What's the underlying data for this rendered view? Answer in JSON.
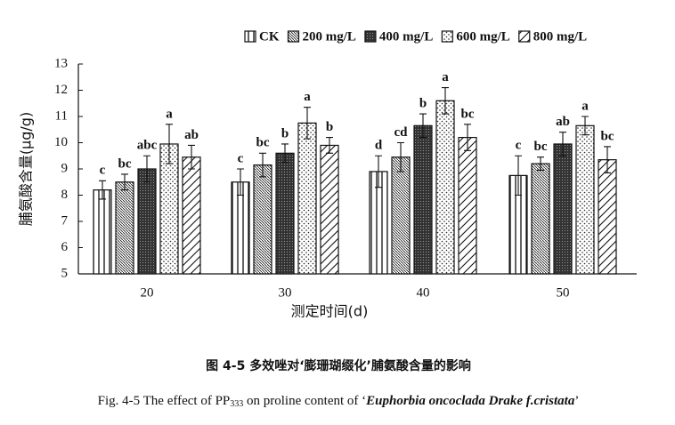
{
  "chart_data": {
    "type": "bar",
    "x_label": "测定时间(d)",
    "y_label": "脯氨酸含量(μg/g)",
    "categories": [
      "20",
      "30",
      "40",
      "50"
    ],
    "ylim": [
      5,
      13
    ],
    "yticks": [
      5,
      6,
      7,
      8,
      9,
      10,
      11,
      12,
      13
    ],
    "series": [
      {
        "name": "CK",
        "color": "#111111",
        "pattern": "vertical",
        "values": [
          8.2,
          8.5,
          8.9,
          8.75
        ],
        "errors": [
          0.35,
          0.5,
          0.6,
          0.75
        ],
        "labels": [
          "c",
          "c",
          "d",
          "c"
        ]
      },
      {
        "name": "200 mg/L",
        "color": "#111111",
        "pattern": "dense-diagonal",
        "values": [
          8.5,
          9.15,
          9.45,
          9.2
        ],
        "errors": [
          0.3,
          0.45,
          0.55,
          0.25
        ],
        "labels": [
          "bc",
          "bc",
          "cd",
          "bc"
        ]
      },
      {
        "name": "400 mg/L",
        "color": "#111111",
        "pattern": "dark",
        "values": [
          9.0,
          9.6,
          10.65,
          9.95
        ],
        "errors": [
          0.5,
          0.35,
          0.45,
          0.45
        ],
        "labels": [
          "abc",
          "b",
          "b",
          "ab"
        ]
      },
      {
        "name": "600 mg/L",
        "color": "#111111",
        "pattern": "dots",
        "values": [
          9.95,
          10.75,
          11.6,
          10.65
        ],
        "errors": [
          0.75,
          0.6,
          0.5,
          0.35
        ],
        "labels": [
          "a",
          "a",
          "a",
          "a"
        ]
      },
      {
        "name": "800 mg/L",
        "color": "#111111",
        "pattern": "diagonal",
        "values": [
          9.45,
          9.9,
          10.2,
          9.35
        ],
        "errors": [
          0.45,
          0.3,
          0.5,
          0.5
        ],
        "labels": [
          "ab",
          "b",
          "bc",
          "bc"
        ]
      }
    ]
  },
  "caption": {
    "zh": "图 4-5  多效唑对‘膨珊瑚缀化’脯氨酸含量的影响",
    "en": [
      "Fig. 4-5 The effect of PP",
      "333",
      " on proline content of ‘",
      "Euphorbia oncoclada Drake f.cristata",
      "’"
    ]
  }
}
